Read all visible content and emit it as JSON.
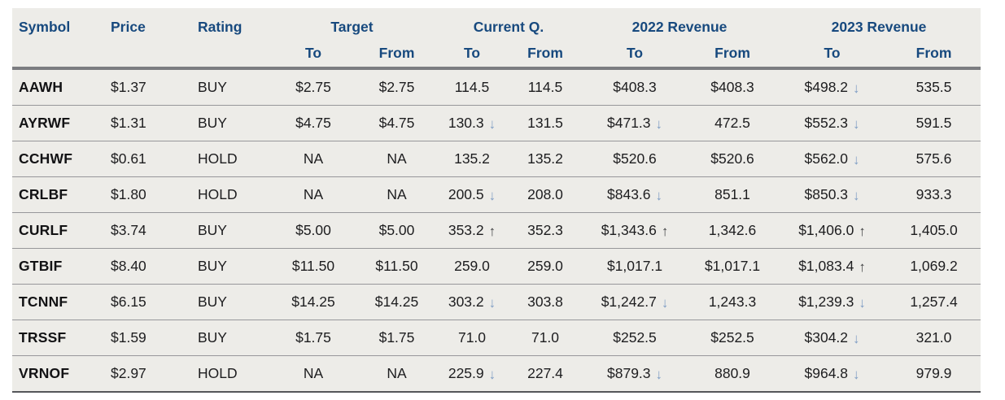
{
  "table": {
    "columns": {
      "symbol": "Symbol",
      "price": "Price",
      "rating": "Rating"
    },
    "groups": [
      {
        "label": "Target",
        "to": "To",
        "from": "From"
      },
      {
        "label": "Current Q.",
        "to": "To",
        "from": "From"
      },
      {
        "label": "2022 Revenue",
        "to": "To",
        "from": "From"
      },
      {
        "label": "2023 Revenue",
        "to": "To",
        "from": "From"
      }
    ],
    "rows": [
      {
        "symbol": "AAWH",
        "price": "$1.37",
        "rating": "BUY",
        "target_to": "$2.75",
        "target_from": "$2.75",
        "cq_to": "114.5",
        "cq_to_arrow": null,
        "cq_from": "114.5",
        "rev22_to": "$408.3",
        "rev22_to_arrow": null,
        "rev22_from": "$408.3",
        "rev23_to": "$498.2",
        "rev23_to_arrow": "down",
        "rev23_from": "535.5"
      },
      {
        "symbol": "AYRWF",
        "price": "$1.31",
        "rating": "BUY",
        "target_to": "$4.75",
        "target_from": "$4.75",
        "cq_to": "130.3",
        "cq_to_arrow": "down",
        "cq_from": "131.5",
        "rev22_to": "$471.3",
        "rev22_to_arrow": "down",
        "rev22_from": "472.5",
        "rev23_to": "$552.3",
        "rev23_to_arrow": "down",
        "rev23_from": "591.5"
      },
      {
        "symbol": "CCHWF",
        "price": "$0.61",
        "rating": "HOLD",
        "target_to": "NA",
        "target_from": "NA",
        "cq_to": "135.2",
        "cq_to_arrow": null,
        "cq_from": "135.2",
        "rev22_to": "$520.6",
        "rev22_to_arrow": null,
        "rev22_from": "$520.6",
        "rev23_to": "$562.0",
        "rev23_to_arrow": "down",
        "rev23_from": "575.6"
      },
      {
        "symbol": "CRLBF",
        "price": "$1.80",
        "rating": "HOLD",
        "target_to": "NA",
        "target_from": "NA",
        "cq_to": "200.5",
        "cq_to_arrow": "down",
        "cq_from": "208.0",
        "rev22_to": "$843.6",
        "rev22_to_arrow": "down",
        "rev22_from": "851.1",
        "rev23_to": "$850.3",
        "rev23_to_arrow": "down",
        "rev23_from": "933.3"
      },
      {
        "symbol": "CURLF",
        "price": "$3.74",
        "rating": "BUY",
        "target_to": "$5.00",
        "target_from": "$5.00",
        "cq_to": "353.2",
        "cq_to_arrow": "up",
        "cq_from": "352.3",
        "rev22_to": "$1,343.6",
        "rev22_to_arrow": "up",
        "rev22_from": "1,342.6",
        "rev23_to": "$1,406.0",
        "rev23_to_arrow": "up",
        "rev23_from": "1,405.0"
      },
      {
        "symbol": "GTBIF",
        "price": "$8.40",
        "rating": "BUY",
        "target_to": "$11.50",
        "target_from": "$11.50",
        "cq_to": "259.0",
        "cq_to_arrow": null,
        "cq_from": "259.0",
        "rev22_to": "$1,017.1",
        "rev22_to_arrow": null,
        "rev22_from": "$1,017.1",
        "rev23_to": "$1,083.4",
        "rev23_to_arrow": "up",
        "rev23_from": "1,069.2"
      },
      {
        "symbol": "TCNNF",
        "price": "$6.15",
        "rating": "BUY",
        "target_to": "$14.25",
        "target_from": "$14.25",
        "cq_to": "303.2",
        "cq_to_arrow": "down",
        "cq_from": "303.8",
        "rev22_to": "$1,242.7",
        "rev22_to_arrow": "down",
        "rev22_from": "1,243.3",
        "rev23_to": "$1,239.3",
        "rev23_to_arrow": "down",
        "rev23_from": "1,257.4"
      },
      {
        "symbol": "TRSSF",
        "price": "$1.59",
        "rating": "BUY",
        "target_to": "$1.75",
        "target_from": "$1.75",
        "cq_to": "71.0",
        "cq_to_arrow": null,
        "cq_from": "71.0",
        "rev22_to": "$252.5",
        "rev22_to_arrow": null,
        "rev22_from": "$252.5",
        "rev23_to": "$304.2",
        "rev23_to_arrow": "down",
        "rev23_from": "321.0"
      },
      {
        "symbol": "VRNOF",
        "price": "$2.97",
        "rating": "HOLD",
        "target_to": "NA",
        "target_from": "NA",
        "cq_to": "225.9",
        "cq_to_arrow": "down",
        "cq_from": "227.4",
        "rev22_to": "$879.3",
        "rev22_to_arrow": "down",
        "rev22_from": "880.9",
        "rev23_to": "$964.8",
        "rev23_to_arrow": "down",
        "rev23_from": "979.9"
      }
    ]
  },
  "icons": {
    "up": "↑",
    "down": "↓"
  },
  "colors": {
    "header_text": "#17497E",
    "table_background": "#EDECE8",
    "up_arrow": "#3E3F41",
    "down_arrow": "#7F9DC4"
  }
}
